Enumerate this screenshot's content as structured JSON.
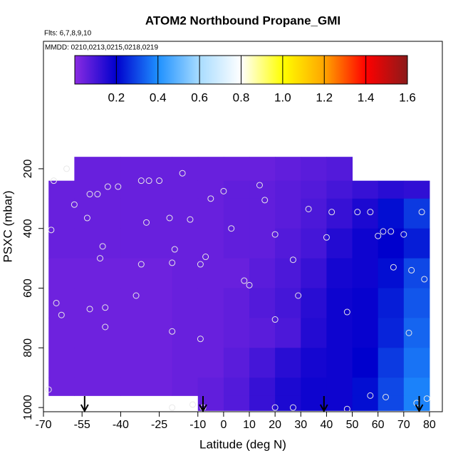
{
  "chart_data": {
    "type": "curtain",
    "title": "ATOM2 Northbound Propane_GMI",
    "annotations": [
      "Flts: 6,7,8,9,10",
      "MMDD: 0210,0213,0215,0218,0219"
    ],
    "x_label": "Latitude (deg N)",
    "y_label": "PSXC (mbar)",
    "xlim": [
      -70,
      85
    ],
    "ylim": [
      1014,
      -227
    ],
    "xticks": [
      -70,
      -55,
      -40,
      -25,
      -10,
      0,
      10,
      20,
      30,
      40,
      50,
      60,
      70,
      80
    ],
    "yticks": [
      200,
      400,
      600,
      800,
      1000
    ],
    "curtain": {
      "lat_edges": [
        -68,
        -58,
        -40,
        -20,
        -10,
        0,
        10,
        20,
        30,
        40,
        50,
        60,
        70,
        80
      ],
      "pressure_edges": [
        160,
        240,
        300,
        400,
        500,
        600,
        700,
        800,
        900,
        960,
        1010
      ],
      "values": [
        [
          null,
          0.05,
          0.05,
          0.05,
          0.05,
          0.05,
          0.05,
          0.06,
          0.07,
          0.08,
          null,
          null,
          null
        ],
        [
          0.05,
          0.05,
          0.05,
          0.05,
          0.05,
          0.06,
          0.06,
          0.07,
          0.08,
          0.1,
          0.12,
          0.14,
          0.13
        ],
        [
          0.05,
          0.05,
          0.05,
          0.05,
          0.05,
          0.06,
          0.06,
          0.07,
          0.09,
          0.12,
          0.16,
          0.22,
          0.28
        ],
        [
          0.05,
          0.05,
          0.05,
          0.05,
          0.05,
          0.06,
          0.06,
          0.08,
          0.1,
          0.15,
          0.18,
          0.2,
          0.24
        ],
        [
          0.04,
          0.04,
          0.04,
          0.05,
          0.05,
          0.05,
          0.07,
          0.09,
          0.12,
          0.17,
          0.18,
          0.22,
          0.3
        ],
        [
          0.04,
          0.04,
          0.04,
          0.05,
          0.05,
          0.06,
          0.08,
          0.1,
          0.14,
          0.18,
          0.19,
          0.24,
          0.32
        ],
        [
          0.04,
          0.04,
          0.04,
          0.05,
          0.05,
          0.06,
          0.07,
          0.09,
          0.15,
          0.18,
          0.19,
          0.25,
          0.34
        ],
        [
          0.04,
          0.04,
          0.04,
          0.05,
          0.05,
          0.07,
          0.1,
          0.14,
          0.17,
          0.18,
          0.2,
          0.28,
          0.36
        ],
        [
          0.04,
          0.04,
          0.04,
          0.05,
          0.06,
          0.08,
          0.12,
          0.16,
          0.18,
          0.18,
          0.22,
          0.3,
          0.38
        ],
        [
          null,
          null,
          null,
          null,
          0.06,
          0.08,
          0.12,
          0.16,
          0.18,
          0.18,
          0.22,
          0.3,
          0.38
        ]
      ]
    },
    "colorbar": {
      "lim": [
        0,
        1.6
      ],
      "ticks": [
        0.2,
        0.4,
        0.6,
        0.8,
        {
          "value": 1,
          "label": "1.0"
        },
        1.2,
        1.4,
        1.6
      ],
      "colors": [
        "#8a2be2",
        "#0000cd",
        "#1e90ff",
        "#a8dcff",
        "#ffffff",
        "#ffff00",
        "#ffa500",
        "#ff0000",
        "#8b1a1a"
      ]
    },
    "points": {
      "color": "#e8e8e8",
      "x": [
        -66,
        -61,
        -58,
        -67,
        -65,
        -63,
        -68,
        -52,
        -49,
        -45,
        -41,
        -53,
        -48,
        -47,
        -52,
        -46,
        -46,
        -32,
        -29,
        -25,
        -30,
        -34,
        -32,
        -21,
        -20,
        -19,
        -20,
        -16,
        -13,
        -12,
        -9,
        -9,
        -7,
        -5,
        0,
        3,
        8,
        10,
        14,
        16,
        20,
        20,
        27,
        29,
        33,
        40,
        42,
        48,
        52,
        57,
        60,
        62,
        65,
        70,
        66,
        73,
        77,
        78,
        72,
        57,
        63,
        79,
        75,
        48,
        27,
        20,
        -20,
        -8
      ],
      "y": [
        240,
        200,
        320,
        405,
        650,
        690,
        940,
        285,
        285,
        260,
        260,
        365,
        500,
        460,
        670,
        665,
        730,
        240,
        240,
        240,
        380,
        625,
        520,
        365,
        515,
        470,
        745,
        215,
        370,
        990,
        520,
        770,
        495,
        300,
        275,
        400,
        575,
        590,
        255,
        305,
        705,
        420,
        505,
        625,
        335,
        430,
        345,
        680,
        345,
        345,
        425,
        410,
        410,
        420,
        530,
        540,
        345,
        570,
        750,
        960,
        965,
        970,
        985,
        1005,
        1000,
        1000,
        1000,
        1000
      ]
    },
    "arrows": {
      "color": "#000000",
      "x": [
        -54,
        -8,
        39,
        76
      ]
    }
  }
}
